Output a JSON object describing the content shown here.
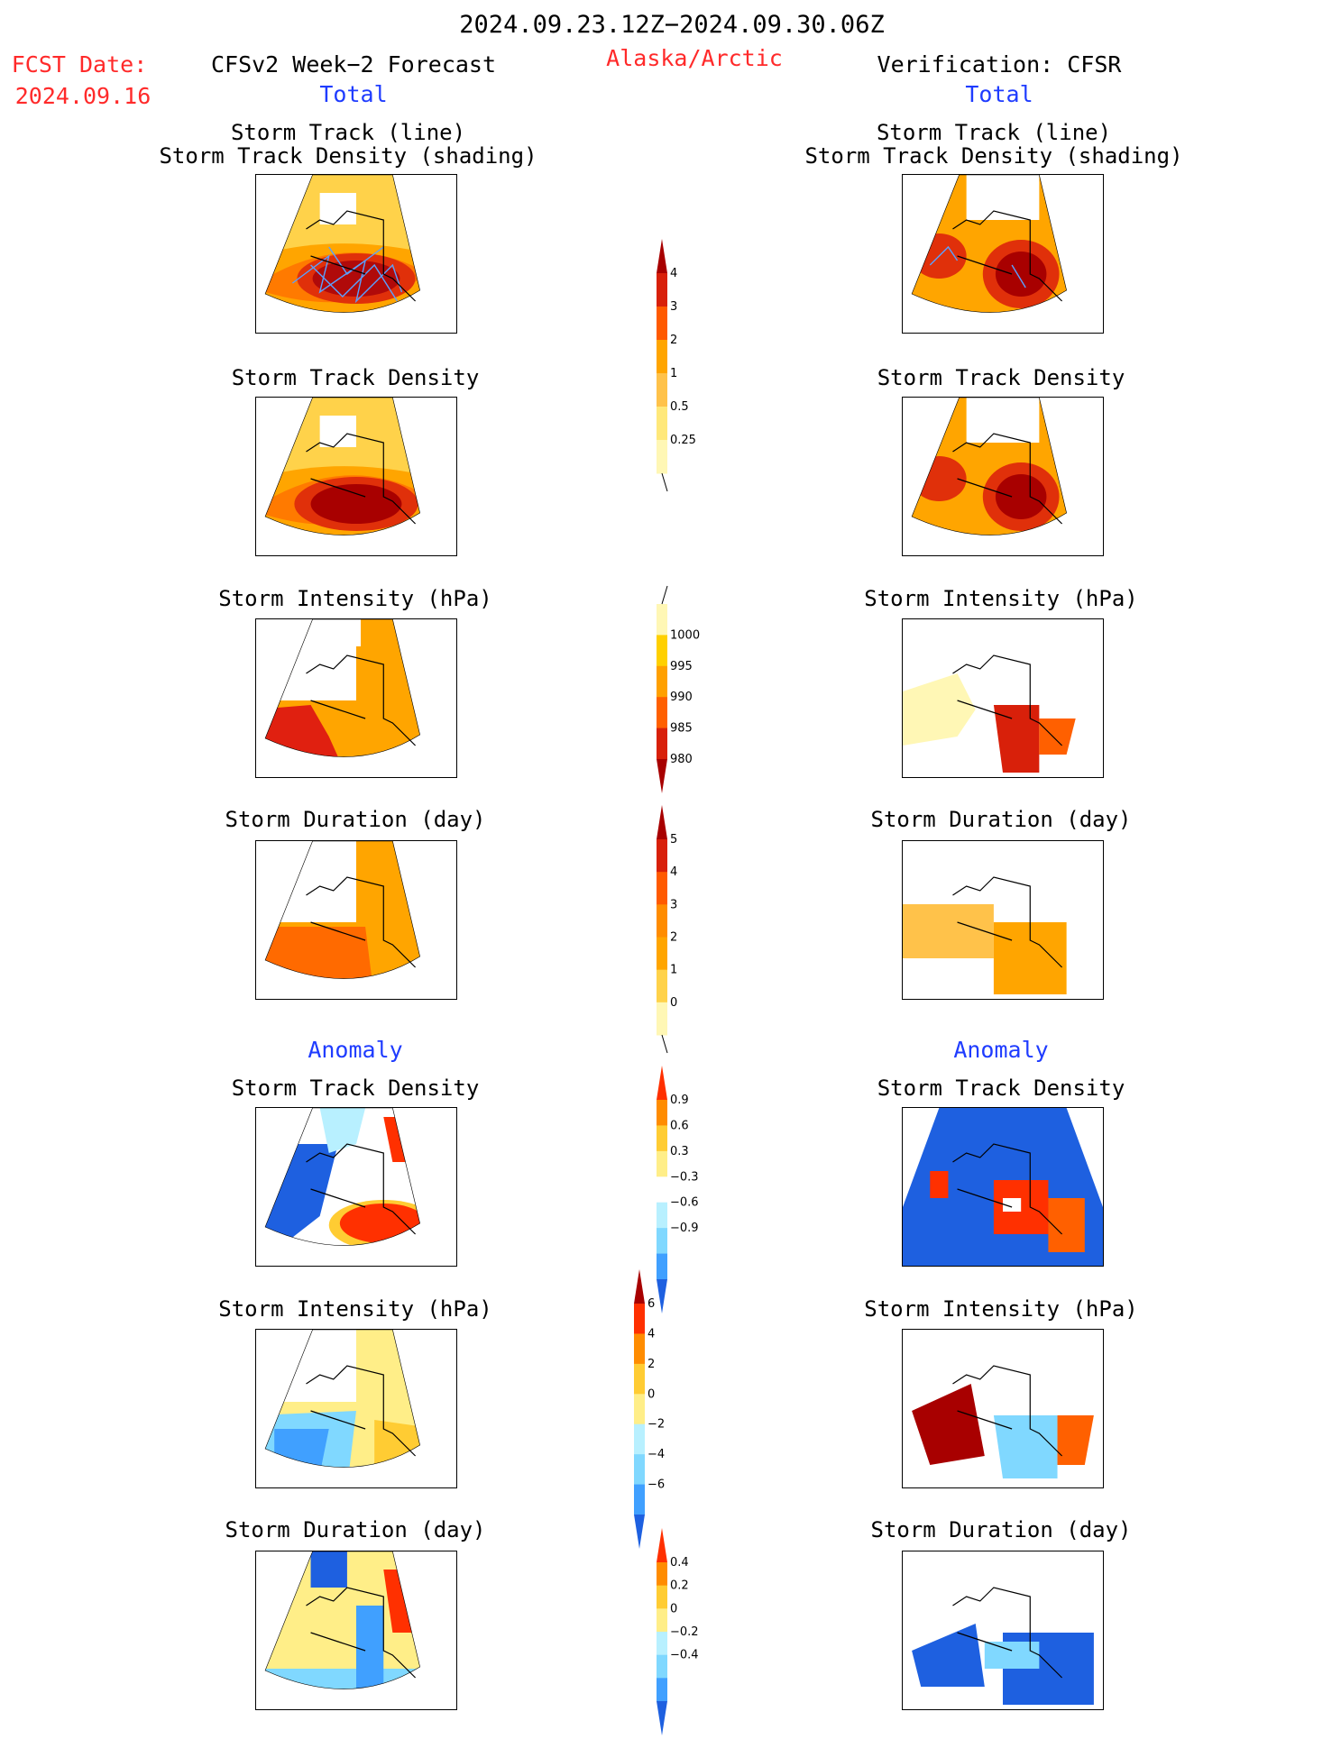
{
  "header": {
    "date_range": "2024.09.23.12Z−2024.09.30.06Z",
    "region": "Alaska/Arctic",
    "fcst_label": "FCST Date:",
    "fcst_date": "2024.09.16",
    "left_model": "CFSv2 Week−2 Forecast",
    "right_model": "Verification: CFSR",
    "left_total": "Total",
    "right_total": "Total",
    "left_anomaly": "Anomaly",
    "right_anomaly": "Anomaly"
  },
  "panel_titles": {
    "track_line": "Storm Track (line)",
    "track_shading": "Storm Track Density (shading)",
    "density": "Storm Track Density",
    "intensity": "Storm Intensity (hPa)",
    "duration": "Storm Duration (day)"
  },
  "colorbars": {
    "density_total": {
      "labels": [
        "4",
        "3",
        "2",
        "1",
        "0.5",
        "0.25"
      ],
      "colors": [
        "#a80000",
        "#d8200a",
        "#ff5a00",
        "#ffa500",
        "#ffc24a",
        "#ffe87a",
        "#fff7b5"
      ]
    },
    "intensity_total": {
      "labels": [
        "1000",
        "995",
        "990",
        "985",
        "980"
      ],
      "colors": [
        "#fff7b5",
        "#ffd000",
        "#ffa000",
        "#ff6000",
        "#d8200a",
        "#a80000"
      ]
    },
    "duration_total": {
      "labels": [
        "5",
        "4",
        "3",
        "2",
        "1",
        "0"
      ],
      "colors": [
        "#a80000",
        "#d8200a",
        "#ff5a00",
        "#ff8c00",
        "#ffa500",
        "#ffd24a",
        "#fff7b5"
      ]
    },
    "density_anom": {
      "labels": [
        "0.9",
        "0.6",
        "0.3",
        "−0.3",
        "−0.6",
        "−0.9"
      ],
      "colors": [
        "#ff3000",
        "#ff8c00",
        "#ffcc33",
        "#ffee88",
        "#ffffff",
        "#b8f0ff",
        "#80d8ff",
        "#40a0ff",
        "#1e60e0"
      ]
    },
    "intensity_anom": {
      "labels": [
        "6",
        "4",
        "2",
        "0",
        "−2",
        "−4",
        "−6"
      ],
      "colors": [
        "#a80000",
        "#ff3000",
        "#ff8c00",
        "#ffcc33",
        "#ffee88",
        "#b8f0ff",
        "#80d8ff",
        "#40a0ff",
        "#1e60e0"
      ]
    },
    "duration_anom": {
      "labels": [
        "0.4",
        "0.2",
        "0",
        "−0.2",
        "−0.4"
      ],
      "colors": [
        "#ff3000",
        "#ff8c00",
        "#ffcc33",
        "#ffee88",
        "#b8f0ff",
        "#80d8ff",
        "#40a0ff",
        "#1e60e0"
      ]
    }
  }
}
